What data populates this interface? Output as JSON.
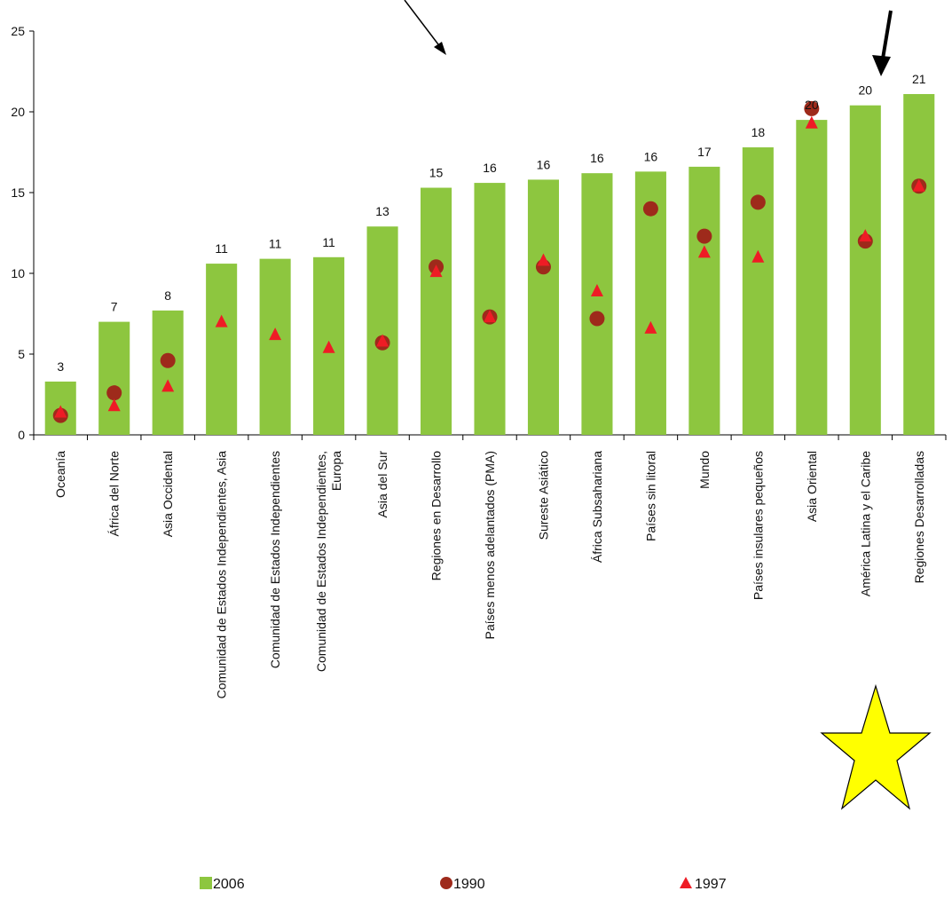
{
  "colors": {
    "bar_2006": "#8dc63f",
    "marker_1990": "#9e2a1b",
    "marker_1997": "#ee1c25",
    "star": "#ffff00"
  },
  "decorations": {
    "arrows": [
      "thin-arrow-icon",
      "bold-arrow-icon"
    ],
    "star": "star-icon"
  },
  "chart_data": {
    "type": "bar",
    "ylim": [
      0,
      25
    ],
    "yticks": [
      0,
      5,
      10,
      15,
      20,
      25
    ],
    "grid": false,
    "legend_position": "bottom",
    "categories": [
      [
        "Oceanía"
      ],
      [
        "África del Norte"
      ],
      [
        "Asia Occidental"
      ],
      [
        "Comunidad de Estados Independientes, Asia"
      ],
      [
        "Comunidad de Estados Independientes"
      ],
      [
        "Comunidad de Estados Independientes,",
        "Europa"
      ],
      [
        "Asia del Sur"
      ],
      [
        "Regiones en Desarrollo"
      ],
      [
        "Países menos adelantados (PMA)"
      ],
      [
        "Sureste Asiático"
      ],
      [
        "África Subsahariana"
      ],
      [
        "Países sin litoral"
      ],
      [
        "Mundo"
      ],
      [
        "Países insulares pequeños"
      ],
      [
        "Asia Oriental"
      ],
      [
        "América Latina y el Caribe"
      ],
      [
        "Regiones Desarrolladas"
      ]
    ],
    "series": [
      {
        "name": "2006",
        "marker": "bar",
        "values": [
          3.3,
          7.0,
          7.7,
          10.6,
          10.9,
          11.0,
          12.9,
          15.3,
          15.6,
          15.8,
          16.2,
          16.3,
          16.6,
          17.8,
          19.5,
          20.4,
          21.1
        ],
        "labels": [
          "3",
          "7",
          "8",
          "11",
          "11",
          "11",
          "13",
          "15",
          "16",
          "16",
          "16",
          "16",
          "17",
          "18",
          "20",
          "20",
          "21"
        ]
      },
      {
        "name": "1990",
        "marker": "circle",
        "values": [
          1.2,
          2.6,
          4.6,
          null,
          null,
          null,
          5.7,
          10.4,
          7.3,
          10.4,
          7.2,
          14.0,
          12.3,
          14.4,
          20.2,
          12.0,
          15.4
        ]
      },
      {
        "name": "1997",
        "marker": "triangle",
        "values": [
          1.4,
          1.8,
          3.0,
          7.0,
          6.2,
          5.4,
          5.8,
          10.1,
          7.3,
          10.8,
          8.9,
          6.6,
          11.3,
          11.0,
          19.3,
          12.3,
          15.4
        ]
      }
    ]
  }
}
